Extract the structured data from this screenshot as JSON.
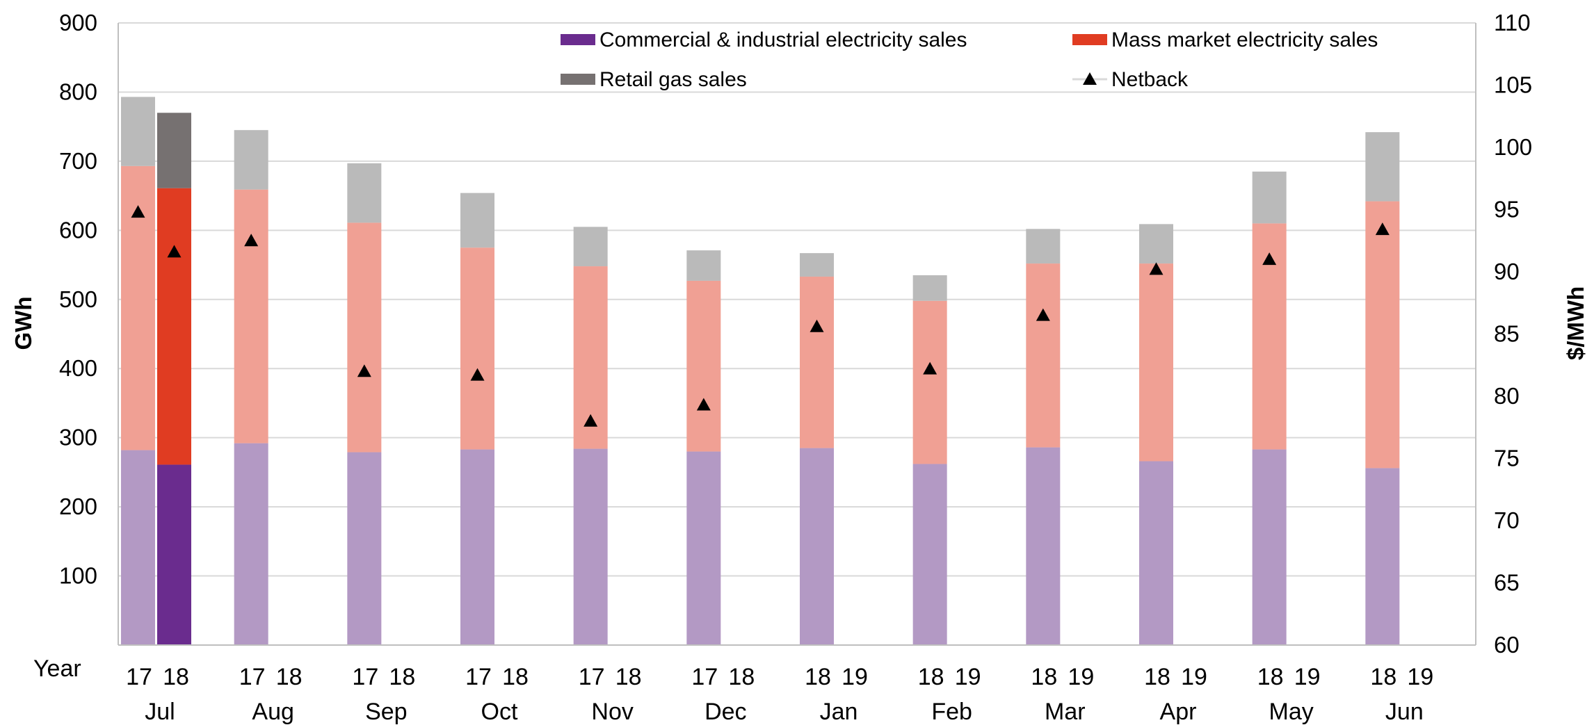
{
  "chart_data": {
    "type": "bar",
    "stacked": true,
    "categories": [
      "Jul",
      "Aug",
      "Sep",
      "Oct",
      "Nov",
      "Dec",
      "Jan",
      "Feb",
      "Mar",
      "Apr",
      "May",
      "Jun"
    ],
    "year_label": "Year",
    "year_pairs": [
      [
        "17",
        "18"
      ],
      [
        "17",
        "18"
      ],
      [
        "17",
        "18"
      ],
      [
        "17",
        "18"
      ],
      [
        "17",
        "18"
      ],
      [
        "17",
        "18"
      ],
      [
        "18",
        "19"
      ],
      [
        "18",
        "19"
      ],
      [
        "18",
        "19"
      ],
      [
        "18",
        "19"
      ],
      [
        "18",
        "19"
      ],
      [
        "18",
        "19"
      ]
    ],
    "ylabel": "GWh",
    "y2label": "$/MWh",
    "ylim": [
      0,
      900
    ],
    "yticks": [
      100,
      200,
      300,
      400,
      500,
      600,
      700,
      800,
      900
    ],
    "y2lim": [
      60,
      110
    ],
    "y2ticks": [
      60,
      65,
      70,
      75,
      80,
      85,
      90,
      95,
      100,
      105,
      110
    ],
    "grid": true,
    "legend_position": "top",
    "series": [
      {
        "name": "Commercial & industrial electricity sales",
        "kind": "bar",
        "axis": "left",
        "color": "#6a2c8e",
        "prior_year": [
          282,
          292,
          279,
          283,
          284,
          280,
          285,
          262,
          286,
          266,
          283,
          256
        ],
        "current_year": [
          261,
          null,
          null,
          null,
          null,
          null,
          null,
          null,
          null,
          null,
          null,
          null
        ]
      },
      {
        "name": "Mass market electricity sales",
        "kind": "bar",
        "axis": "left",
        "color": "#e03c22",
        "prior_year": [
          411,
          367,
          332,
          292,
          264,
          247,
          248,
          236,
          266,
          286,
          327,
          386
        ],
        "current_year": [
          400,
          null,
          null,
          null,
          null,
          null,
          null,
          null,
          null,
          null,
          null,
          null
        ]
      },
      {
        "name": "Retail gas sales",
        "kind": "bar",
        "axis": "left",
        "color": "#767171",
        "prior_year": [
          100,
          86,
          86,
          79,
          57,
          44,
          34,
          37,
          50,
          57,
          75,
          100
        ],
        "current_year": [
          109,
          null,
          null,
          null,
          null,
          null,
          null,
          null,
          null,
          null,
          null,
          null
        ]
      },
      {
        "name": "Netback",
        "kind": "marker",
        "axis": "right",
        "color": "#000000",
        "prior_year": [
          94.8,
          92.5,
          82.0,
          81.7,
          78.0,
          79.3,
          85.6,
          82.2,
          86.5,
          90.2,
          91.0,
          93.4
        ],
        "current_year": [
          91.6,
          null,
          null,
          null,
          null,
          null,
          null,
          null,
          null,
          null,
          null,
          null
        ]
      }
    ],
    "faded_colors": {
      "Commercial & industrial electricity sales": "#b399c4",
      "Mass market electricity sales": "#f0a094",
      "Retail gas sales": "#bababa"
    }
  }
}
